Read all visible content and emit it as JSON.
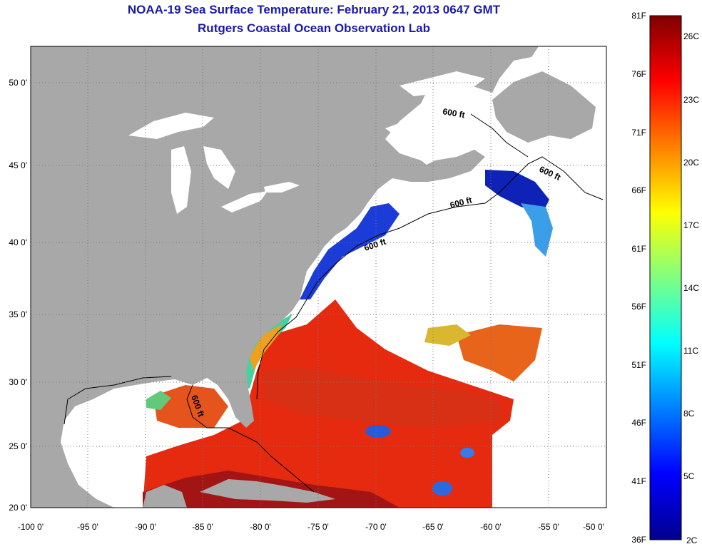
{
  "title": {
    "line1": "NOAA-19 Sea Surface Temperature:  February 21, 2013 0647 GMT",
    "line2": "Rutgers Coastal Ocean Observation Lab"
  },
  "map": {
    "lon_ticks": [
      "-100 0'",
      "-95 0'",
      "-90 0'",
      "-85 0'",
      "-80 0'",
      "-75 0'",
      "-70 0'",
      "-65 0'",
      "-60 0'",
      "-55 0'",
      "-50 0'"
    ],
    "lat_ticks": [
      "50 0'",
      "45 0'",
      "40 0'",
      "35 0'",
      "30 0'",
      "25 0'",
      "20 0'"
    ],
    "isobath_labels": [
      "600 ft",
      "600 ft",
      "600 ft",
      "600 ft",
      "600 ft"
    ],
    "land_color": "#a8a8a8",
    "no_data_color": "#ffffff"
  },
  "colorbar": {
    "fahrenheit_labels": [
      "81F",
      "76F",
      "71F",
      "66F",
      "61F",
      "56F",
      "51F",
      "46F",
      "41F",
      "36F"
    ],
    "celsius_labels": [
      "26C",
      "23C",
      "20C",
      "17C",
      "14C",
      "11C",
      "8C",
      "5C",
      "2C"
    ],
    "colormap": "jet",
    "range_f": [
      36,
      81
    ],
    "range_c": [
      2,
      27
    ]
  }
}
